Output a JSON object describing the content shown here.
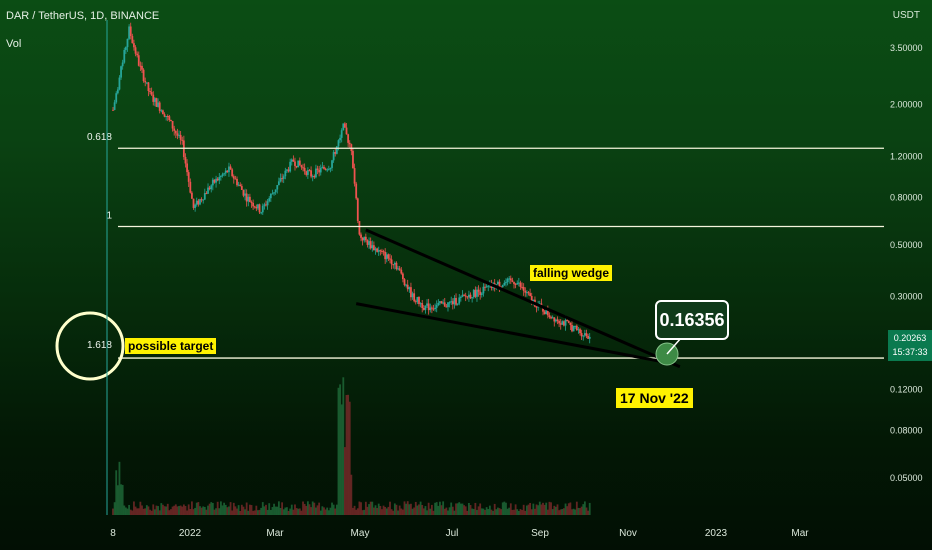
{
  "header": {
    "symbol_line": "DAR / TetherUS, 1D, BINANCE",
    "volume_label": "Vol",
    "unit_label": "USDT"
  },
  "annotations": {
    "falling_wedge": "falling wedge",
    "possible_target": "possible target",
    "target_price": "0.16356",
    "target_date": "17 Nov '22"
  },
  "current_price": {
    "value": "0.20263",
    "countdown": "15:37:33"
  },
  "colors": {
    "up_candle": "#26a69a",
    "down_candle": "#ef5350",
    "level_line": "#f5f5dc",
    "annotation_bg": "#fff200"
  },
  "chart_data": {
    "type": "candlestick",
    "title": "DAR / TetherUS, 1D, BINANCE",
    "y_scale": "log",
    "y_ticks": [
      "3.50000",
      "2.00000",
      "1.20000",
      "0.80000",
      "0.50000",
      "0.30000",
      "0.12000",
      "0.08000",
      "0.05000"
    ],
    "x_ticks": [
      "8",
      "2022",
      "Mar",
      "May",
      "Jul",
      "Sep",
      "Nov",
      "2023",
      "Mar"
    ],
    "fib_levels": [
      {
        "label": "0.618",
        "price": 1.3
      },
      {
        "label": "1",
        "price": 0.6
      },
      {
        "label": "1.618",
        "price": 0.16356
      }
    ],
    "price_path": [
      [
        "2021-12-08",
        1.9
      ],
      [
        "2021-12-12",
        2.6
      ],
      [
        "2021-12-18",
        4.2
      ],
      [
        "2021-12-24",
        3.0
      ],
      [
        "2021-12-31",
        2.2
      ],
      [
        "2022-01-10",
        1.8
      ],
      [
        "2022-01-20",
        1.35
      ],
      [
        "2022-01-27",
        0.72
      ],
      [
        "2022-02-08",
        0.92
      ],
      [
        "2022-02-18",
        1.05
      ],
      [
        "2022-03-01",
        0.8
      ],
      [
        "2022-03-10",
        0.7
      ],
      [
        "2022-03-20",
        0.9
      ],
      [
        "2022-03-30",
        1.15
      ],
      [
        "2022-04-10",
        1.0
      ],
      [
        "2022-04-22",
        1.1
      ],
      [
        "2022-04-30",
        1.6
      ],
      [
        "2022-05-05",
        1.3
      ],
      [
        "2022-05-10",
        0.55
      ],
      [
        "2022-05-20",
        0.48
      ],
      [
        "2022-06-01",
        0.42
      ],
      [
        "2022-06-12",
        0.3
      ],
      [
        "2022-06-20",
        0.27
      ],
      [
        "2022-07-05",
        0.28
      ],
      [
        "2022-07-20",
        0.31
      ],
      [
        "2022-08-05",
        0.34
      ],
      [
        "2022-08-15",
        0.35
      ],
      [
        "2022-08-25",
        0.29
      ],
      [
        "2022-09-05",
        0.25
      ],
      [
        "2022-09-15",
        0.23
      ],
      [
        "2022-09-25",
        0.21
      ],
      [
        "2022-09-30",
        0.2026
      ]
    ],
    "wedge_upper": [
      [
        "2022-05-14",
        0.58
      ],
      [
        "2022-11-25",
        0.15
      ]
    ],
    "wedge_lower": [
      [
        "2022-05-08",
        0.28
      ],
      [
        "2022-11-20",
        0.155
      ]
    ],
    "target": {
      "date": "2022-11-17",
      "price": 0.16356
    }
  }
}
